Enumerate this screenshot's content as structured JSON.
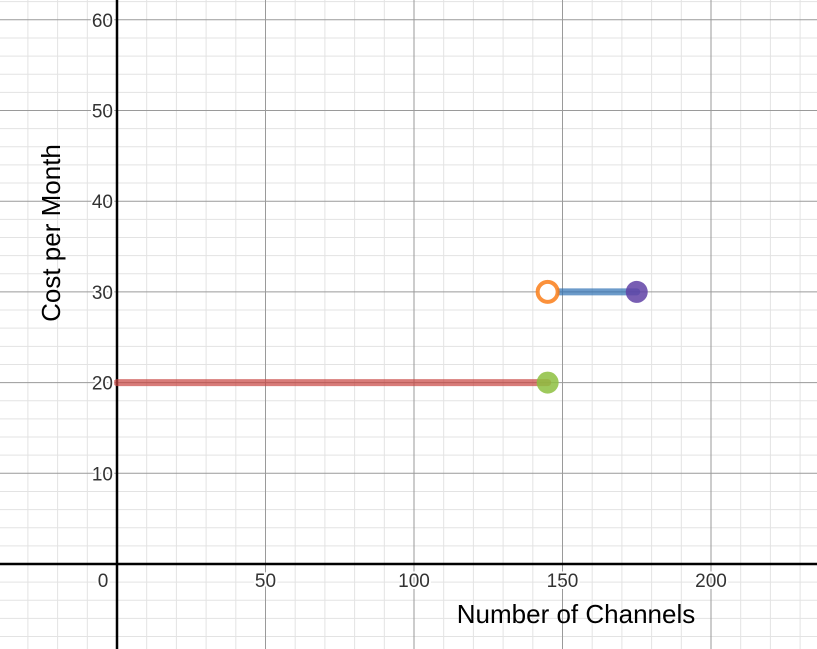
{
  "chart_data": {
    "type": "line",
    "xlabel": "Number of Channels",
    "ylabel": "Cost per Month",
    "xlim": [
      -40,
      237
    ],
    "ylim": [
      -9.5,
      61.5
    ],
    "grid": true,
    "x_ticks": [
      {
        "value": 0,
        "label": "0"
      },
      {
        "value": 50,
        "label": "50"
      },
      {
        "value": 100,
        "label": "100"
      },
      {
        "value": 150,
        "label": "150"
      },
      {
        "value": 200,
        "label": "200"
      }
    ],
    "y_ticks": [
      {
        "value": 10,
        "label": "10"
      },
      {
        "value": 20,
        "label": "20"
      },
      {
        "value": 30,
        "label": "30"
      },
      {
        "value": 40,
        "label": "40"
      },
      {
        "value": 50,
        "label": "50"
      },
      {
        "value": 60,
        "label": "60"
      }
    ],
    "series": [
      {
        "x": [
          0,
          145
        ],
        "y": [
          20,
          20
        ],
        "color": "#c74440"
      },
      {
        "x": [
          145,
          175
        ],
        "y": [
          30,
          30
        ],
        "color": "#2d70b3"
      }
    ],
    "points": [
      {
        "x": 145,
        "y": 20,
        "style": "filled",
        "color": "#8dbf3f"
      },
      {
        "x": 145,
        "y": 30,
        "style": "open",
        "color": "#fa7e19"
      },
      {
        "x": 175,
        "y": 30,
        "style": "filled",
        "color": "#6042a6"
      }
    ]
  }
}
